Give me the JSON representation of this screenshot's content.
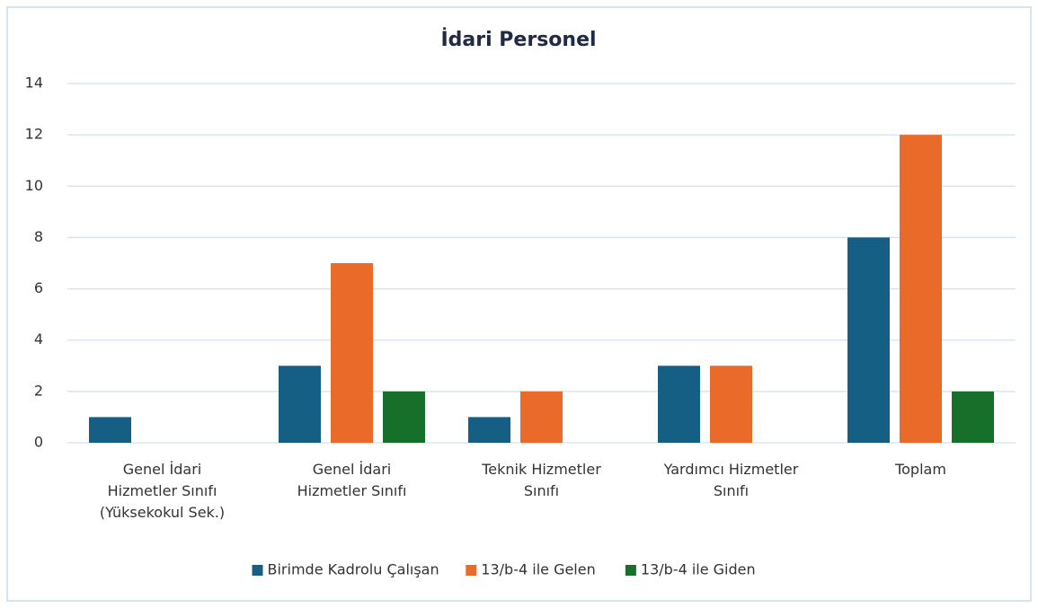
{
  "chart_data": {
    "type": "bar",
    "title": "İdari Personel",
    "categories": [
      "Genel İdari Hizmetler Sınıfı (Yüksekokul Sek.)",
      "Genel İdari Hizmetler Sınıfı",
      "Teknik Hizmetler Sınıfı",
      "Yardımcı Hizmetler Sınıfı",
      "Toplam"
    ],
    "series": [
      {
        "name": "Birimde Kadrolu Çalışan",
        "color": "#155e84",
        "values": [
          1,
          3,
          1,
          3,
          8
        ]
      },
      {
        "name": "13/b-4 ile Gelen",
        "color": "#ea6a2a",
        "values": [
          0,
          7,
          2,
          3,
          12
        ]
      },
      {
        "name": "13/b-4 ile Giden",
        "color": "#16702a",
        "values": [
          0,
          2,
          0,
          0,
          2
        ]
      }
    ],
    "ylim": [
      0,
      14
    ],
    "yticks": [
      0,
      2,
      4,
      6,
      8,
      10,
      12,
      14
    ],
    "grid": true,
    "legend": "bottom"
  }
}
